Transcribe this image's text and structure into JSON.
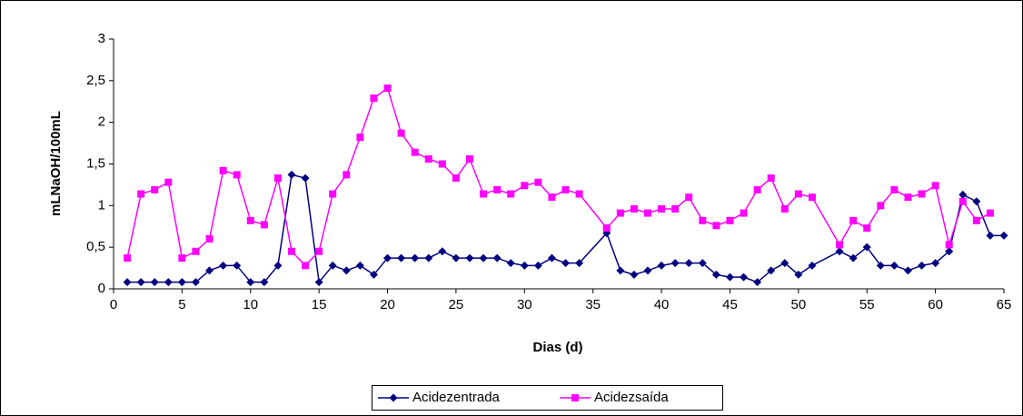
{
  "chart_data": {
    "type": "line",
    "x_label": "Dias (d)",
    "y_label": "mLNaOH/100mL",
    "xlim": [
      0,
      65
    ],
    "xticks": [
      0,
      5,
      10,
      15,
      20,
      25,
      30,
      35,
      40,
      45,
      50,
      55,
      60,
      65
    ],
    "ylim": [
      0,
      3
    ],
    "yticks": [
      0,
      {
        "value": 0.5,
        "label": "0,5"
      },
      1,
      {
        "value": 1.5,
        "label": "1,5"
      },
      2,
      {
        "value": 2.5,
        "label": "2,5"
      },
      3
    ],
    "legend": "bottom",
    "series": [
      {
        "name": "Acidezentrada",
        "color": "#000080",
        "marker": "diamond",
        "x": [
          1,
          2,
          3,
          4,
          5,
          6,
          7,
          8,
          9,
          10,
          11,
          12,
          13,
          14,
          15,
          16,
          17,
          18,
          19,
          20,
          21,
          22,
          23,
          24,
          25,
          26,
          27,
          28,
          29,
          30,
          31,
          32,
          33,
          34,
          36,
          37,
          38,
          39,
          40,
          41,
          42,
          43,
          44,
          45,
          46,
          47,
          48,
          49,
          50,
          51,
          53,
          54,
          55,
          56,
          57,
          58,
          59,
          60,
          61,
          62,
          63,
          64,
          65
        ],
        "values": [
          0.08,
          0.08,
          0.08,
          0.08,
          0.08,
          0.08,
          0.22,
          0.28,
          0.28,
          0.08,
          0.08,
          0.28,
          1.37,
          1.33,
          0.08,
          0.28,
          0.22,
          0.28,
          0.17,
          0.37,
          0.37,
          0.37,
          0.37,
          0.45,
          0.37,
          0.37,
          0.37,
          0.37,
          0.31,
          0.28,
          0.28,
          0.37,
          0.31,
          0.31,
          0.67,
          0.22,
          0.17,
          0.22,
          0.28,
          0.31,
          0.31,
          0.31,
          0.17,
          0.14,
          0.14,
          0.08,
          0.22,
          0.31,
          0.17,
          0.28,
          0.45,
          0.37,
          0.5,
          0.28,
          0.28,
          0.22,
          0.28,
          0.31,
          0.45,
          1.13,
          1.05,
          0.64,
          0.64
        ]
      },
      {
        "name": "Acidezsaída",
        "color": "#ff00ff",
        "marker": "square",
        "x": [
          1,
          2,
          3,
          4,
          5,
          6,
          7,
          8,
          9,
          10,
          11,
          12,
          13,
          14,
          15,
          16,
          17,
          18,
          19,
          20,
          21,
          22,
          23,
          24,
          25,
          26,
          27,
          28,
          29,
          30,
          31,
          32,
          33,
          34,
          36,
          37,
          38,
          39,
          40,
          41,
          42,
          43,
          44,
          45,
          46,
          47,
          48,
          49,
          50,
          51,
          53,
          54,
          55,
          56,
          57,
          58,
          59,
          60,
          61,
          62,
          63,
          64
        ],
        "values": [
          0.37,
          1.14,
          1.19,
          1.28,
          0.37,
          0.45,
          0.6,
          1.42,
          1.37,
          0.82,
          0.77,
          1.33,
          0.45,
          0.28,
          0.45,
          1.14,
          1.37,
          1.82,
          2.29,
          2.41,
          1.87,
          1.64,
          1.56,
          1.5,
          1.33,
          1.56,
          1.14,
          1.19,
          1.14,
          1.24,
          1.28,
          1.1,
          1.19,
          1.14,
          0.73,
          0.91,
          0.96,
          0.91,
          0.96,
          0.96,
          1.1,
          0.82,
          0.76,
          0.82,
          0.91,
          1.19,
          1.33,
          0.96,
          1.14,
          1.1,
          0.53,
          0.82,
          0.73,
          1.0,
          1.19,
          1.1,
          1.14,
          1.24,
          0.53,
          1.05,
          0.82,
          0.91
        ]
      }
    ]
  }
}
